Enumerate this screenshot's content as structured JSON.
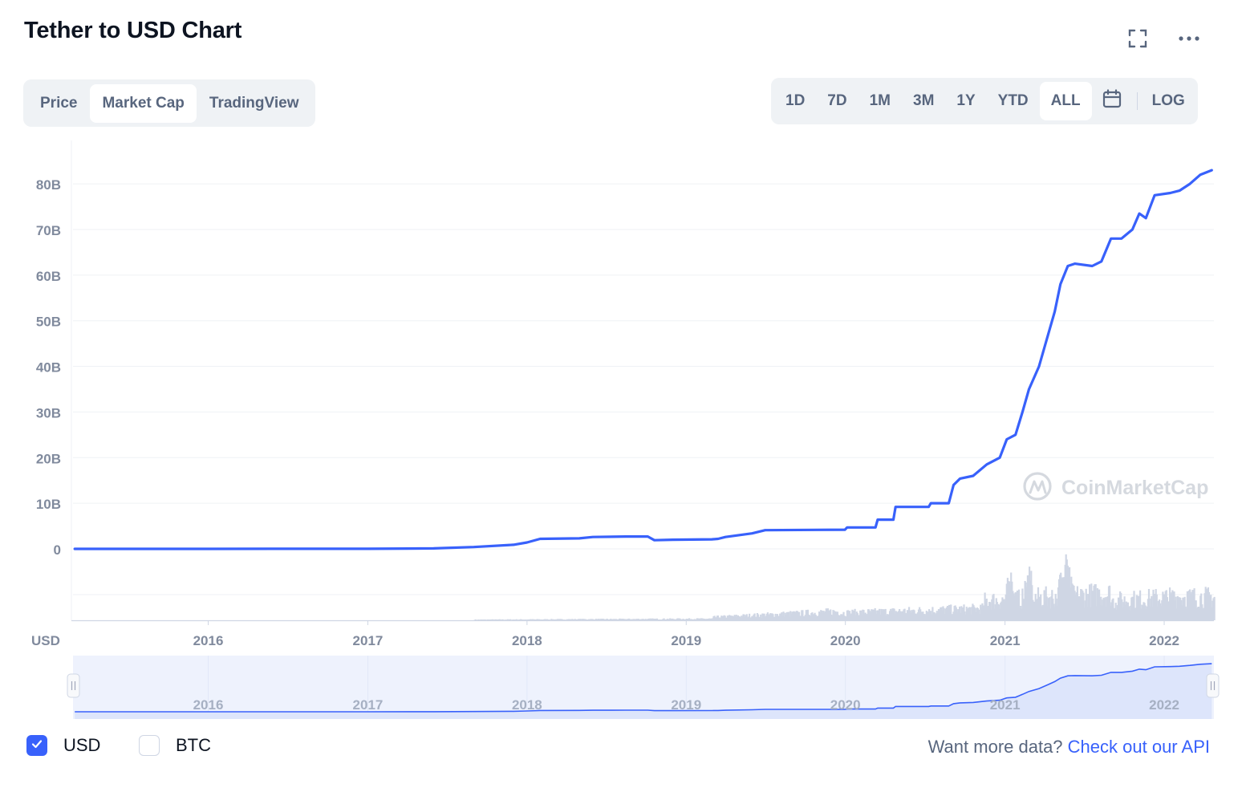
{
  "header": {
    "title": "Tether to USD Chart"
  },
  "icons": {
    "fullscreen": "fullscreen-icon",
    "more": "more-options-icon",
    "calendar": "calendar-icon",
    "check": "check-icon",
    "watermark_logo": "coinmarketcap-logo-icon"
  },
  "view_tabs": {
    "items": [
      "Price",
      "Market Cap",
      "TradingView"
    ],
    "active": "Market Cap"
  },
  "range_tabs": {
    "items": [
      "1D",
      "7D",
      "1M",
      "3M",
      "1Y",
      "YTD",
      "ALL"
    ],
    "active": "ALL",
    "log_label": "LOG"
  },
  "watermark": {
    "text": "CoinMarketCap"
  },
  "currency_toggle": {
    "usd_label": "USD",
    "usd_checked": true,
    "btc_label": "BTC",
    "btc_checked": false
  },
  "footer": {
    "prompt": "Want more data?",
    "link": "Check out our API"
  },
  "colors": {
    "line": "#3861fb",
    "volume": "#cfd6e4",
    "navigator_fill": "#eef2fd",
    "text_muted": "#58667e",
    "axis_text": "#808a9d"
  },
  "chart_data": {
    "type": "line",
    "title": "Tether to USD Chart",
    "series": [
      {
        "values_by_date": [
          [
            "2015-03-01",
            0.0
          ],
          [
            "2016-01-01",
            0.0
          ],
          [
            "2016-06-01",
            0.01
          ],
          [
            "2017-01-01",
            0.01
          ],
          [
            "2017-06-01",
            0.1
          ],
          [
            "2017-09-01",
            0.4
          ],
          [
            "2017-12-01",
            0.9
          ],
          [
            "2018-01-01",
            1.4
          ],
          [
            "2018-01-31",
            2.2
          ],
          [
            "2018-05-01",
            2.3
          ],
          [
            "2018-06-01",
            2.6
          ],
          [
            "2018-08-15",
            2.7
          ],
          [
            "2018-10-05",
            2.7
          ],
          [
            "2018-10-20",
            1.9
          ],
          [
            "2018-12-01",
            2.0
          ],
          [
            "2019-03-01",
            2.1
          ],
          [
            "2019-03-15",
            2.2
          ],
          [
            "2019-04-01",
            2.6
          ],
          [
            "2019-06-01",
            3.4
          ],
          [
            "2019-07-01",
            4.1
          ],
          [
            "2019-12-31",
            4.2
          ],
          [
            "2020-01-05",
            4.7
          ],
          [
            "2020-03-10",
            4.7
          ],
          [
            "2020-03-15",
            6.4
          ],
          [
            "2020-04-20",
            6.4
          ],
          [
            "2020-04-25",
            9.2
          ],
          [
            "2020-07-10",
            9.2
          ],
          [
            "2020-07-15",
            10.0
          ],
          [
            "2020-08-25",
            10.0
          ],
          [
            "2020-09-05",
            14.0
          ],
          [
            "2020-09-20",
            15.4
          ],
          [
            "2020-10-20",
            16.0
          ],
          [
            "2020-11-20",
            18.5
          ],
          [
            "2020-12-20",
            20.0
          ],
          [
            "2021-01-05",
            24.0
          ],
          [
            "2021-01-25",
            25.0
          ],
          [
            "2021-02-10",
            30.0
          ],
          [
            "2021-02-25",
            35.0
          ],
          [
            "2021-03-20",
            40.0
          ],
          [
            "2021-04-10",
            47.0
          ],
          [
            "2021-04-25",
            52.0
          ],
          [
            "2021-05-08",
            58.0
          ],
          [
            "2021-05-25",
            62.0
          ],
          [
            "2021-06-10",
            62.5
          ],
          [
            "2021-07-20",
            62.0
          ],
          [
            "2021-08-10",
            63.0
          ],
          [
            "2021-09-01",
            68.0
          ],
          [
            "2021-09-25",
            68.0
          ],
          [
            "2021-10-20",
            70.0
          ],
          [
            "2021-11-05",
            73.5
          ],
          [
            "2021-11-20",
            72.5
          ],
          [
            "2021-12-10",
            77.5
          ],
          [
            "2022-01-15",
            78.0
          ],
          [
            "2022-02-05",
            78.5
          ],
          [
            "2022-03-01",
            80.0
          ],
          [
            "2022-03-25",
            82.0
          ],
          [
            "2022-04-20",
            83.0
          ]
        ]
      }
    ],
    "yticks": [
      "0",
      "10B",
      "20B",
      "30B",
      "40B",
      "50B",
      "60B",
      "70B",
      "80B"
    ],
    "ylim": [
      0,
      86
    ],
    "xticks": [
      "2016",
      "2017",
      "2018",
      "2019",
      "2020",
      "2021",
      "2022"
    ],
    "xlim": [
      "2015-02-25",
      "2022-04-25"
    ],
    "axis_unit_label": "USD",
    "grid": true,
    "volume_shown": true,
    "navigator_shown": true
  }
}
